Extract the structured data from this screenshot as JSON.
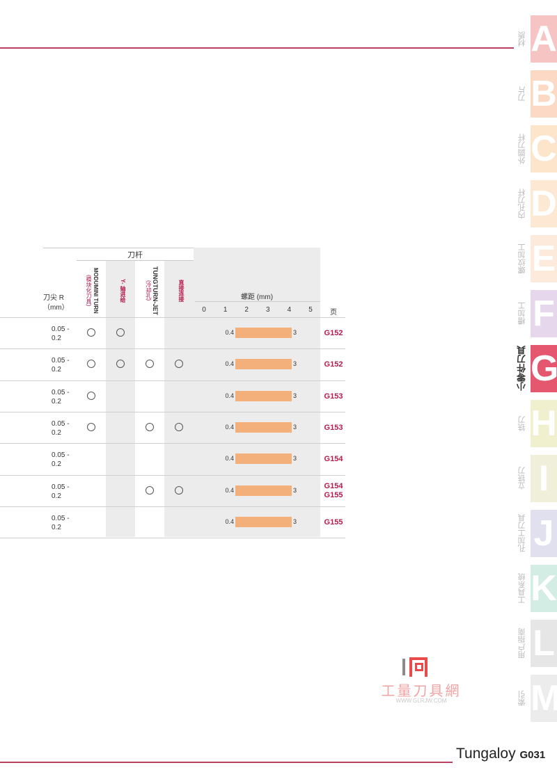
{
  "tabs": [
    {
      "letter": "A",
      "label": "材质",
      "bg": "#f6c4c2",
      "fg": "#ffffff"
    },
    {
      "letter": "B",
      "label": "刀片",
      "bg": "#fcd9c4",
      "fg": "#ffffff"
    },
    {
      "letter": "C",
      "label": "外圆刀杆",
      "bg": "#fde5cc",
      "fg": "#ffffff"
    },
    {
      "letter": "D",
      "label": "内孔刀杆",
      "bg": "#fde8d3",
      "fg": "#ffffff"
    },
    {
      "letter": "E",
      "label": "螺纹加工",
      "bg": "#fdeadb",
      "fg": "#ffffff"
    },
    {
      "letter": "F",
      "label": "槽加工",
      "bg": "#e6d7ed",
      "fg": "#ffffff"
    },
    {
      "letter": "G",
      "label": "小零件刀具",
      "bg": "#e4576f",
      "fg": "#ffffff",
      "active": true
    },
    {
      "letter": "H",
      "label": "铣刀",
      "bg": "#f0f0cf",
      "fg": "#ffffff"
    },
    {
      "letter": "I",
      "label": "立铣刀",
      "bg": "#f0f0da",
      "fg": "#ffffff"
    },
    {
      "letter": "J",
      "label": "孔加工刀具",
      "bg": "#e0e0ef",
      "fg": "#ffffff"
    },
    {
      "letter": "K",
      "label": "工具系统",
      "bg": "#d3ede4",
      "fg": "#ffffff"
    },
    {
      "letter": "L",
      "label": "用户指南",
      "bg": "#e6e6e6",
      "fg": "#ffffff"
    },
    {
      "letter": "M",
      "label": "索引",
      "bg": "#ececec",
      "fg": "#ffffff"
    }
  ],
  "table": {
    "shank_header": "刀杆",
    "columns": [
      {
        "brand": "MODUMINI TURN",
        "note": "(模块化刀具)",
        "color": "#333333"
      },
      {
        "brand": "Y- 轴进给",
        "note": "",
        "color": "#b41a4a"
      },
      {
        "brand": "TUNGTURN-JET",
        "note": "(冷却孔)",
        "color": "#333333"
      },
      {
        "brand": "直接连接",
        "note": "",
        "color": "#b41a4a"
      }
    ],
    "radius_header_line1": "刀尖 R",
    "radius_header_line2": "（mm）",
    "pitch_header": "螺距 (mm)",
    "ticks": [
      "0",
      "1",
      "2",
      "3",
      "4",
      "5"
    ],
    "page_header": "页",
    "rows": [
      {
        "radius_1": "0.05 -",
        "radius_2": "0.2",
        "marks": [
          true,
          true,
          false,
          false
        ],
        "pitch_min": "0.4",
        "pitch_max": "3",
        "pages": [
          "G152"
        ]
      },
      {
        "radius_1": "0.05 -",
        "radius_2": "0.2",
        "marks": [
          true,
          true,
          true,
          true
        ],
        "pitch_min": "0.4",
        "pitch_max": "3",
        "pages": [
          "G152"
        ]
      },
      {
        "radius_1": "0.05 -",
        "radius_2": "0.2",
        "marks": [
          true,
          false,
          false,
          false
        ],
        "pitch_min": "0.4",
        "pitch_max": "3",
        "pages": [
          "G153"
        ]
      },
      {
        "radius_1": "0.05 -",
        "radius_2": "0.2",
        "marks": [
          true,
          false,
          true,
          true
        ],
        "pitch_min": "0.4",
        "pitch_max": "3",
        "pages": [
          "G153"
        ]
      },
      {
        "radius_1": "0.05 -",
        "radius_2": "0.2",
        "marks": [
          false,
          false,
          false,
          false
        ],
        "pitch_min": "0.4",
        "pitch_max": "3",
        "pages": [
          "G154"
        ]
      },
      {
        "radius_1": "0.05 -",
        "radius_2": "0.2",
        "marks": [
          false,
          false,
          true,
          true
        ],
        "pitch_min": "0.4",
        "pitch_max": "3",
        "pages": [
          "G154",
          "G155"
        ]
      },
      {
        "radius_1": "0.05 -",
        "radius_2": "0.2",
        "marks": [
          false,
          false,
          false,
          false
        ],
        "pitch_min": "0.4",
        "pitch_max": "3",
        "pages": [
          "G155"
        ]
      }
    ]
  },
  "watermark": {
    "title": "工量刀具網",
    "url": "WWW.GLRJW.COM"
  },
  "footer": {
    "brand": "Tungaloy",
    "page": "G031"
  }
}
